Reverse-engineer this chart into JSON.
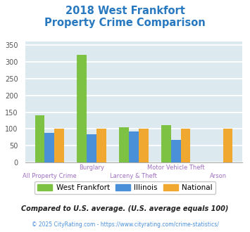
{
  "title_line1": "2018 West Frankfort",
  "title_line2": "Property Crime Comparison",
  "cat_line1": [
    "",
    "Burglary",
    "",
    "Motor Vehicle Theft",
    ""
  ],
  "cat_line2": [
    "All Property Crime",
    "",
    "Larceny & Theft",
    "",
    "Arson"
  ],
  "west_frankfort": [
    140,
    320,
    105,
    112,
    0
  ],
  "illinois": [
    88,
    83,
    93,
    68,
    0
  ],
  "national": [
    100,
    100,
    100,
    100,
    100
  ],
  "bar_colors": {
    "west_frankfort": "#7dc242",
    "illinois": "#4a90d9",
    "national": "#f0a830"
  },
  "ylim": [
    0,
    360
  ],
  "yticks": [
    0,
    50,
    100,
    150,
    200,
    250,
    300,
    350
  ],
  "background_color": "#dce9ef",
  "grid_color": "#ffffff",
  "title_color": "#2979c0",
  "xlabel_color": "#a070c0",
  "legend_labels": [
    "West Frankfort",
    "Illinois",
    "National"
  ],
  "footnote1": "Compared to U.S. average. (U.S. average equals 100)",
  "footnote2": "© 2025 CityRating.com - https://www.cityrating.com/crime-statistics/",
  "footnote1_color": "#222222",
  "footnote2_color": "#4a90d9"
}
